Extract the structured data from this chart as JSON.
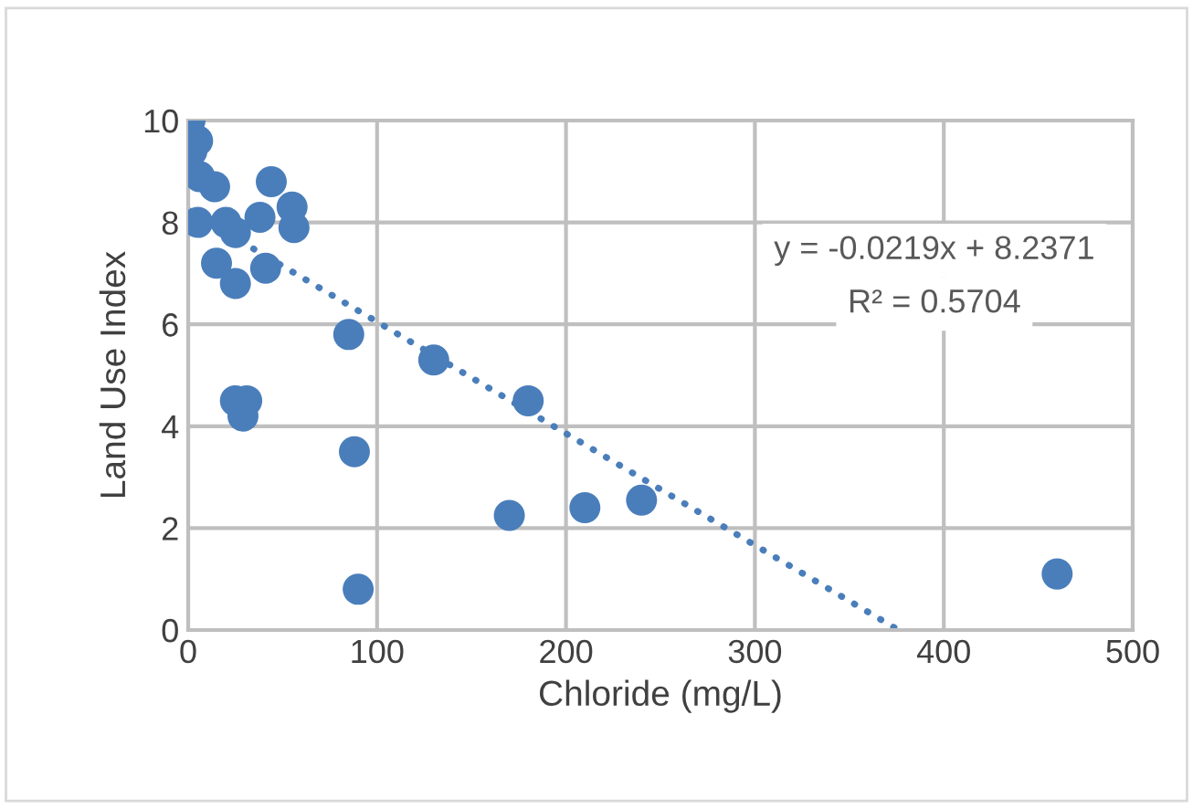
{
  "chart_data": {
    "type": "scatter",
    "xlabel": "Chloride (mg/L)",
    "ylabel": "Land Use Index",
    "annotations": [
      "y = -0.0219x + 8.2371",
      "R² = 0.5704"
    ],
    "series": [
      {
        "color": "#4a7ebb",
        "marker": "circle",
        "x": [
          1,
          5,
          2,
          6,
          14,
          5,
          20,
          25,
          38,
          44,
          55,
          56,
          15,
          41,
          25,
          85,
          130,
          180,
          25,
          31,
          29,
          88,
          170,
          210,
          240,
          90,
          460
        ],
        "values": [
          10.0,
          9.6,
          9.4,
          8.9,
          8.7,
          8.0,
          8.0,
          7.8,
          8.1,
          8.8,
          8.3,
          7.9,
          7.2,
          7.1,
          6.8,
          5.8,
          5.3,
          4.5,
          4.5,
          4.5,
          4.2,
          3.5,
          2.25,
          2.4,
          2.55,
          0.8,
          1.1
        ]
      },
      {
        "type": "line",
        "color": "#4a7ebb",
        "line_style": "dotted",
        "x": [
          0,
          376
        ],
        "values": [
          8.24,
          0
        ]
      }
    ],
    "xlim": [
      0,
      500
    ],
    "xticks": [
      0,
      100,
      200,
      300,
      400,
      500
    ],
    "ylim": [
      0,
      10
    ],
    "yticks": [
      0,
      2,
      4,
      6,
      8,
      10
    ],
    "grid": true,
    "legend": false
  }
}
